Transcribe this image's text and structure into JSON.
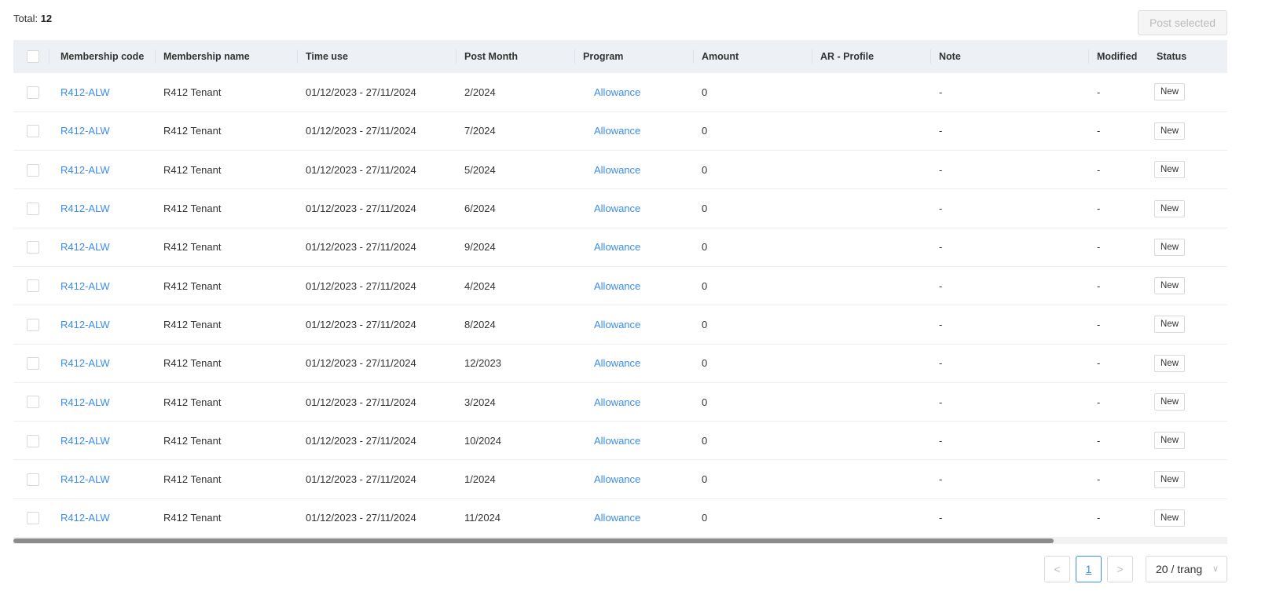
{
  "header": {
    "total_label": "Total:",
    "total_value": "12",
    "post_selected_label": "Post selected"
  },
  "colors": {
    "link": "#3b8ced",
    "header_bg": "#edf1f5"
  },
  "table": {
    "columns": [
      "",
      "Membership code",
      "Membership name",
      "Time use",
      "Post Month",
      "Program",
      "Amount",
      "AR - Profile",
      "Note",
      "Modified",
      "Status"
    ],
    "rows": [
      {
        "code": "R412-ALW",
        "name": "R412 Tenant",
        "time": "01/12/2023 - 27/11/2024",
        "month": "2/2024",
        "program": "Allowance",
        "amount": "0",
        "ar": "",
        "note": "-",
        "modified": "-",
        "status": "New"
      },
      {
        "code": "R412-ALW",
        "name": "R412 Tenant",
        "time": "01/12/2023 - 27/11/2024",
        "month": "7/2024",
        "program": "Allowance",
        "amount": "0",
        "ar": "",
        "note": "-",
        "modified": "-",
        "status": "New"
      },
      {
        "code": "R412-ALW",
        "name": "R412 Tenant",
        "time": "01/12/2023 - 27/11/2024",
        "month": "5/2024",
        "program": "Allowance",
        "amount": "0",
        "ar": "",
        "note": "-",
        "modified": "-",
        "status": "New"
      },
      {
        "code": "R412-ALW",
        "name": "R412 Tenant",
        "time": "01/12/2023 - 27/11/2024",
        "month": "6/2024",
        "program": "Allowance",
        "amount": "0",
        "ar": "",
        "note": "-",
        "modified": "-",
        "status": "New"
      },
      {
        "code": "R412-ALW",
        "name": "R412 Tenant",
        "time": "01/12/2023 - 27/11/2024",
        "month": "9/2024",
        "program": "Allowance",
        "amount": "0",
        "ar": "",
        "note": "-",
        "modified": "-",
        "status": "New"
      },
      {
        "code": "R412-ALW",
        "name": "R412 Tenant",
        "time": "01/12/2023 - 27/11/2024",
        "month": "4/2024",
        "program": "Allowance",
        "amount": "0",
        "ar": "",
        "note": "-",
        "modified": "-",
        "status": "New"
      },
      {
        "code": "R412-ALW",
        "name": "R412 Tenant",
        "time": "01/12/2023 - 27/11/2024",
        "month": "8/2024",
        "program": "Allowance",
        "amount": "0",
        "ar": "",
        "note": "-",
        "modified": "-",
        "status": "New"
      },
      {
        "code": "R412-ALW",
        "name": "R412 Tenant",
        "time": "01/12/2023 - 27/11/2024",
        "month": "12/2023",
        "program": "Allowance",
        "amount": "0",
        "ar": "",
        "note": "-",
        "modified": "-",
        "status": "New"
      },
      {
        "code": "R412-ALW",
        "name": "R412 Tenant",
        "time": "01/12/2023 - 27/11/2024",
        "month": "3/2024",
        "program": "Allowance",
        "amount": "0",
        "ar": "",
        "note": "-",
        "modified": "-",
        "status": "New"
      },
      {
        "code": "R412-ALW",
        "name": "R412 Tenant",
        "time": "01/12/2023 - 27/11/2024",
        "month": "10/2024",
        "program": "Allowance",
        "amount": "0",
        "ar": "",
        "note": "-",
        "modified": "-",
        "status": "New"
      },
      {
        "code": "R412-ALW",
        "name": "R412 Tenant",
        "time": "01/12/2023 - 27/11/2024",
        "month": "1/2024",
        "program": "Allowance",
        "amount": "0",
        "ar": "",
        "note": "-",
        "modified": "-",
        "status": "New"
      },
      {
        "code": "R412-ALW",
        "name": "R412 Tenant",
        "time": "01/12/2023 - 27/11/2024",
        "month": "11/2024",
        "program": "Allowance",
        "amount": "0",
        "ar": "",
        "note": "-",
        "modified": "-",
        "status": "New"
      }
    ]
  },
  "pagination": {
    "prev": "<",
    "current": "1",
    "next": ">",
    "page_size": "20 / trang",
    "page_size_icon": "chevron-down-icon"
  }
}
